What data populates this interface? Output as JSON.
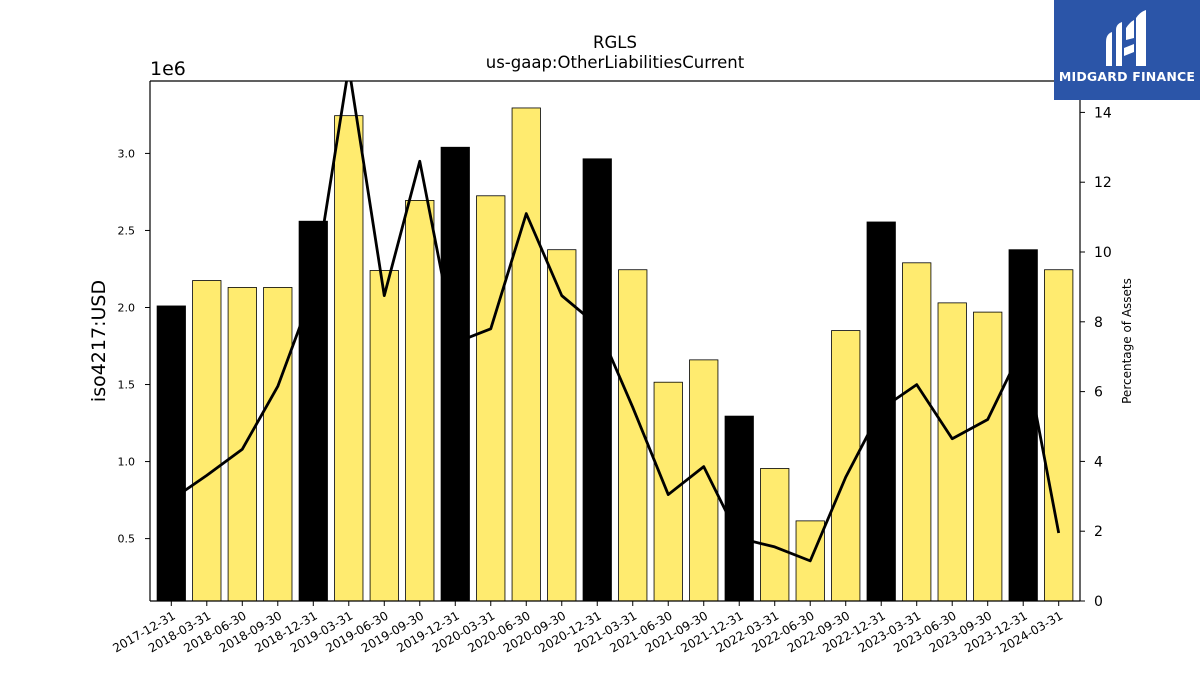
{
  "chart_data": {
    "type": "bar",
    "title": "RGLS",
    "subtitle": "us-gaap:OtherLiabilitiesCurrent",
    "ylabel": "iso4217:USD",
    "y_offset_text": "1e6",
    "y2label": "Percentage of Assets",
    "ylim": [
      95000,
      3470000
    ],
    "y2lim": [
      0,
      14.9
    ],
    "y_ticks": [
      "0.5",
      "1.0",
      "1.5",
      "2.0",
      "2.5",
      "3.0"
    ],
    "y2_ticks": [
      "0",
      "2",
      "4",
      "6",
      "8",
      "10",
      "12",
      "14"
    ],
    "categories": [
      "2017-12-31",
      "2018-03-31",
      "2018-06-30",
      "2018-09-30",
      "2018-12-31",
      "2019-03-31",
      "2019-06-30",
      "2019-09-30",
      "2019-12-31",
      "2020-03-31",
      "2020-06-30",
      "2020-09-30",
      "2020-12-31",
      "2021-03-31",
      "2021-06-30",
      "2021-09-30",
      "2021-12-31",
      "2022-03-31",
      "2022-06-30",
      "2022-09-30",
      "2022-12-31",
      "2023-03-31",
      "2023-06-30",
      "2023-09-30",
      "2023-12-31",
      "2024-03-31"
    ],
    "series": [
      {
        "kind": "bar",
        "values": [
          2010000,
          2175000,
          2130000,
          2130000,
          2560000,
          3245000,
          2240000,
          2695000,
          3040000,
          2725000,
          3295000,
          2375000,
          2965000,
          2245000,
          1515000,
          1660000,
          1295000,
          955000,
          615000,
          1850000,
          2555000,
          2290000,
          2030000,
          1970000,
          2375000,
          2245000
        ]
      },
      {
        "kind": "line",
        "axis": "right",
        "values": [
          2.9,
          3.6,
          4.35,
          6.15,
          8.9,
          15.3,
          8.75,
          12.6,
          7.4,
          7.8,
          11.1,
          8.75,
          7.9,
          5.55,
          3.05,
          3.85,
          1.8,
          1.55,
          1.15,
          3.55,
          5.5,
          6.2,
          4.65,
          5.2,
          7.3,
          1.95
        ]
      }
    ],
    "bar_colors": {
      "year_end": "#000000",
      "quarter": "#ffeb6f"
    },
    "line_color": "#000000",
    "grid": false
  },
  "logo": {
    "text": "MIDGARD FINANCE",
    "background": "#2b55a8"
  }
}
